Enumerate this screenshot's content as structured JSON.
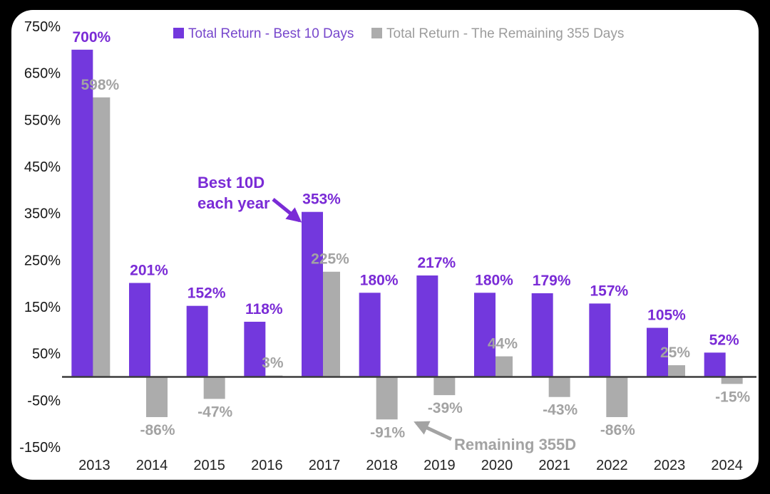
{
  "chart_data": {
    "type": "bar",
    "title": "",
    "categories": [
      "2013",
      "2014",
      "2015",
      "2016",
      "2017",
      "2018",
      "2019",
      "2020",
      "2021",
      "2022",
      "2023",
      "2024"
    ],
    "series": [
      {
        "name": "Total Return - Best 10 Days",
        "color": "#7338DD",
        "label_color": "#7A2BD6",
        "values": [
          700,
          201,
          152,
          118,
          353,
          180,
          217,
          180,
          179,
          157,
          105,
          52
        ]
      },
      {
        "name": "Total Return - The Remaining 355 Days",
        "color": "#ACACAC",
        "label_color": "#A3A3A3",
        "values": [
          598,
          -86,
          -47,
          3,
          225,
          -91,
          -39,
          44,
          -43,
          -86,
          25,
          -15
        ]
      }
    ],
    "value_suffix": "%",
    "ylim": [
      -150,
      750
    ],
    "y_ticks": [
      750,
      650,
      550,
      450,
      350,
      250,
      150,
      50,
      -50,
      -150
    ],
    "tick_suffix": "%",
    "grid": false,
    "legend_position": "top",
    "annotations": [
      {
        "id": "best-10d",
        "lines": [
          "Best 10D",
          "each year"
        ],
        "color": "#7A2BD6",
        "points_to": "2017 Best 10 Days bar"
      },
      {
        "id": "remaining-355d",
        "text": "Remaining 355D",
        "color": "#A3A3A3",
        "points_to": "2018 Remaining 355 Days bar"
      }
    ]
  },
  "panel": {
    "background": "#FFFFFF",
    "frame": "#000000",
    "axis_color": "#3B3B3B"
  }
}
